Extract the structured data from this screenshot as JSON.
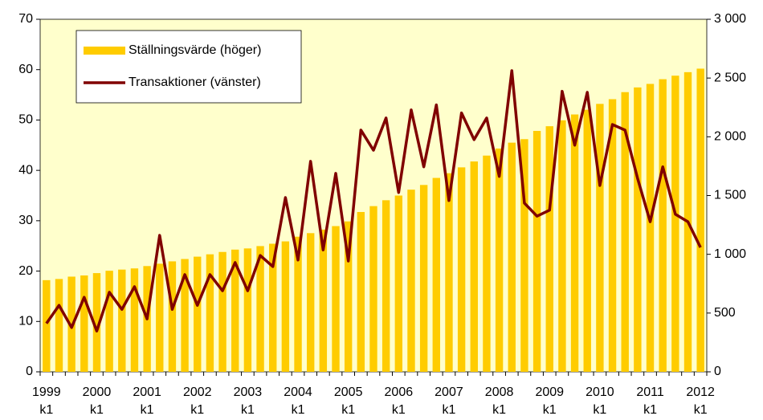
{
  "chart_data": {
    "type": "bar",
    "categories": [
      "1999\nk1",
      null,
      null,
      null,
      "2000\nk1",
      null,
      null,
      null,
      "2001\nk1",
      null,
      null,
      null,
      "2002\nk1",
      null,
      null,
      null,
      "2003\nk1",
      null,
      null,
      null,
      "2004\nk1",
      null,
      null,
      null,
      "2005\nk1",
      null,
      null,
      null,
      "2006\nk1",
      null,
      null,
      null,
      "2007\nk1",
      null,
      null,
      null,
      "2008\nk1",
      null,
      null,
      null,
      "2009\nk1",
      null,
      null,
      null,
      "2010\nk1",
      null,
      null,
      null,
      "2011\nk1",
      null,
      null,
      null,
      "2012\nk1"
    ],
    "series": [
      {
        "name": "Ställningsvärde (höger)",
        "type": "bar",
        "axis": "y2",
        "color": "#ffcc00",
        "values": [
          780,
          790,
          810,
          820,
          840,
          860,
          870,
          880,
          900,
          920,
          940,
          960,
          980,
          1000,
          1020,
          1040,
          1050,
          1070,
          1090,
          1110,
          1150,
          1180,
          1210,
          1240,
          1280,
          1360,
          1410,
          1460,
          1500,
          1550,
          1590,
          1650,
          1690,
          1740,
          1790,
          1840,
          1900,
          1950,
          1980,
          2050,
          2090,
          2140,
          2190,
          2230,
          2280,
          2320,
          2380,
          2420,
          2450,
          2490,
          2520,
          2550,
          2580
        ]
      },
      {
        "name": "Transaktioner (vänster)",
        "type": "line",
        "color": "#800000",
        "values": [
          9.6,
          13.2,
          8.8,
          14.8,
          8.1,
          15.8,
          12.4,
          16.9,
          10.5,
          27.1,
          12.4,
          19.3,
          13.2,
          19.3,
          16.1,
          21.7,
          16.1,
          23.1,
          20.9,
          34.6,
          22.2,
          41.8,
          24.2,
          39.4,
          22.0,
          48.0,
          44.0,
          50.4,
          35.6,
          52.0,
          40.7,
          53.0,
          34.0,
          51.4,
          46.1,
          50.4,
          38.8,
          59.8,
          33.5,
          30.9,
          32.1,
          55.7,
          45.0,
          55.5,
          37.0,
          49.1,
          48.0,
          38.4,
          29.8,
          40.7,
          31.3,
          29.8,
          24.7
        ]
      }
    ],
    "ylim": [
      0,
      70
    ],
    "yticks": [
      0,
      10,
      20,
      30,
      40,
      50,
      60,
      70
    ],
    "y2lim": [
      0,
      3000
    ],
    "y2ticks": [
      0,
      500,
      {
        "value": 1000,
        "label": "1 000"
      },
      {
        "value": 1500,
        "label": "1 500"
      },
      {
        "value": 2000,
        "label": "2 000"
      },
      {
        "value": 2500,
        "label": "2 500"
      },
      {
        "value": 3000,
        "label": "3 000"
      }
    ],
    "plot_background": "#ffffcc",
    "legend": "upper left"
  }
}
